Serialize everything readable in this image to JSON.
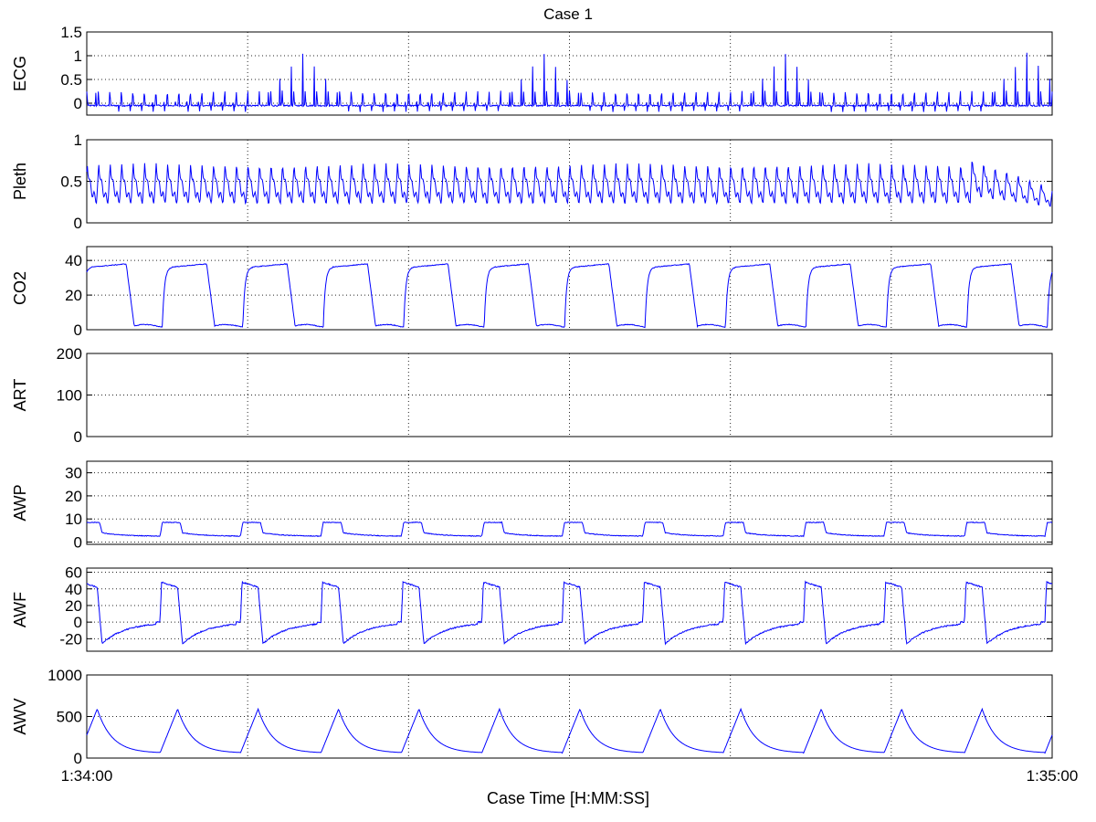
{
  "figure_title": "Case 1",
  "colors": {
    "trace": "#0000ff",
    "axes": "#000000",
    "background": "#ffffff"
  },
  "chart_data": [
    {
      "type": "line",
      "panel": "ecg",
      "ylabel": "ECG",
      "ylim": [
        -0.25,
        1.5
      ],
      "yticks": [
        0,
        0.5,
        1,
        1.5
      ],
      "ytick_labels": [
        "0",
        "0.5",
        "1",
        "1.5"
      ],
      "grid": true,
      "x_unit": "seconds after 1:34:00",
      "xlim": [
        0,
        60
      ],
      "signal": {
        "kind": "ecg",
        "beats_per_minute": 84,
        "r_peak": 1.1,
        "t_wave": 0.3,
        "baseline": -0.05
      }
    },
    {
      "type": "line",
      "panel": "pleth",
      "ylabel": "Pleth",
      "ylim": [
        0,
        1
      ],
      "yticks": [
        0,
        0.5,
        1
      ],
      "ytick_labels": [
        "0",
        "0.5",
        "1"
      ],
      "grid": true,
      "x_unit": "seconds after 1:34:00",
      "xlim": [
        0,
        60
      ],
      "signal": {
        "kind": "pleth",
        "beats_per_minute": 84,
        "peak": 0.72,
        "trough": 0.25,
        "end_value": 0.2
      }
    },
    {
      "type": "line",
      "panel": "co2",
      "ylabel": "CO2",
      "ylim": [
        0,
        48
      ],
      "yticks": [
        0,
        20,
        40
      ],
      "ytick_labels": [
        "0",
        "20",
        "40"
      ],
      "grid": true,
      "x_unit": "seconds after 1:34:00",
      "xlim": [
        0,
        60
      ],
      "signal": {
        "kind": "co2",
        "breaths_per_minute": 12,
        "plateau": 38,
        "minimum": 2
      }
    },
    {
      "type": "line",
      "panel": "art",
      "ylabel": "ART",
      "ylim": [
        0,
        200
      ],
      "yticks": [
        0,
        100,
        200
      ],
      "ytick_labels": [
        "0",
        "100",
        "200"
      ],
      "grid": true,
      "x_unit": "seconds after 1:34:00",
      "xlim": [
        0,
        60
      ],
      "signal": {
        "kind": "none"
      }
    },
    {
      "type": "line",
      "panel": "awp",
      "ylabel": "AWP",
      "ylim": [
        -1,
        35
      ],
      "yticks": [
        0,
        10,
        20,
        30
      ],
      "ytick_labels": [
        "0",
        "10",
        "20",
        "30"
      ],
      "grid": true,
      "x_unit": "seconds after 1:34:00",
      "xlim": [
        0,
        60
      ],
      "signal": {
        "kind": "awp",
        "breaths_per_minute": 12,
        "peak": 8.5,
        "baseline": 2.5
      }
    },
    {
      "type": "line",
      "panel": "awf",
      "ylabel": "AWF",
      "ylim": [
        -35,
        65
      ],
      "yticks": [
        -20,
        0,
        20,
        40,
        60
      ],
      "ytick_labels": [
        "-20",
        "0",
        "20",
        "40",
        "60"
      ],
      "grid": true,
      "x_unit": "seconds after 1:34:00",
      "xlim": [
        0,
        60
      ],
      "signal": {
        "kind": "awf",
        "breaths_per_minute": 12,
        "peak": 48,
        "minimum": -26
      }
    },
    {
      "type": "line",
      "panel": "awv",
      "ylabel": "AWV",
      "ylim": [
        0,
        1000
      ],
      "yticks": [
        0,
        500,
        1000
      ],
      "ytick_labels": [
        "0",
        "500",
        "1000"
      ],
      "grid": true,
      "x_unit": "seconds after 1:34:00",
      "xlim": [
        0,
        60
      ],
      "signal": {
        "kind": "awv",
        "breaths_per_minute": 12,
        "peak": 590,
        "baseline": 60
      }
    }
  ],
  "x_axis": {
    "label": "Case Time [H:MM:SS]",
    "tick_labels": [
      "1:34:00",
      "1:35:00"
    ],
    "gridlines_at_seconds": [
      10,
      20,
      30,
      40,
      50
    ]
  }
}
